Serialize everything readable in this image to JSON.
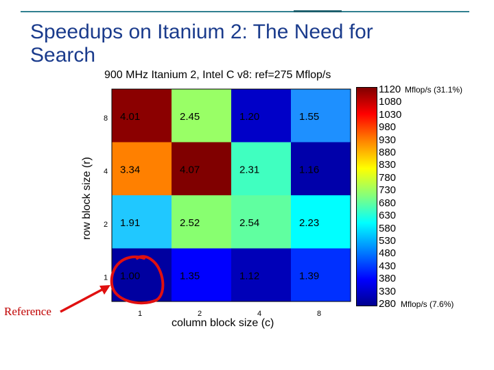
{
  "slide": {
    "title": "Speedups on Itanium 2: The Need for Search",
    "annotation_label": "Reference"
  },
  "chart_data": {
    "type": "heatmap",
    "title": "900 MHz Itanium 2, Intel C v8: ref=275 Mflop/s",
    "xlabel": "column block size (c)",
    "ylabel": "row block size (r)",
    "x_categories": [
      "1",
      "2",
      "4",
      "8"
    ],
    "y_categories": [
      "8",
      "4",
      "2",
      "1"
    ],
    "y_tick_labels_shown": [
      "8",
      "4",
      "2",
      "1"
    ],
    "values": [
      [
        4.01,
        2.45,
        1.2,
        1.55
      ],
      [
        3.34,
        4.07,
        2.31,
        1.16
      ],
      [
        1.91,
        2.52,
        2.54,
        2.23
      ],
      [
        1.0,
        1.35,
        1.12,
        1.39
      ]
    ],
    "value_labels": [
      [
        "4.01",
        "2.45",
        "1.20",
        "1.55"
      ],
      [
        "3.34",
        "4.07",
        "2.31",
        "1.16"
      ],
      [
        "1.91",
        "2.52",
        "2.54",
        "2.23"
      ],
      [
        "1.00",
        "1.35",
        "1.12",
        "1.39"
      ]
    ],
    "reference_mflops": 275,
    "colorbar": {
      "unit": "Mflop/s",
      "ticks": [
        "1120",
        "1080",
        "1030",
        "980",
        "930",
        "880",
        "830",
        "780",
        "730",
        "680",
        "630",
        "580",
        "530",
        "480",
        "430",
        "380",
        "330",
        "280"
      ],
      "max_label": "Mflop/s (31.1%)",
      "min_label": "Mflop/s (7.6%)",
      "range": [
        280,
        1120
      ]
    },
    "cell_colors": [
      [
        "#8b0000",
        "#99ff66",
        "#0000c8",
        "#1e90ff"
      ],
      [
        "#ff8000",
        "#800000",
        "#40ffc0",
        "#0000aa"
      ],
      [
        "#20c8ff",
        "#88ff70",
        "#60ffa0",
        "#00ffff"
      ],
      [
        "#0000a0",
        "#0000ff",
        "#0000b8",
        "#0030ff"
      ]
    ],
    "grid": false
  }
}
